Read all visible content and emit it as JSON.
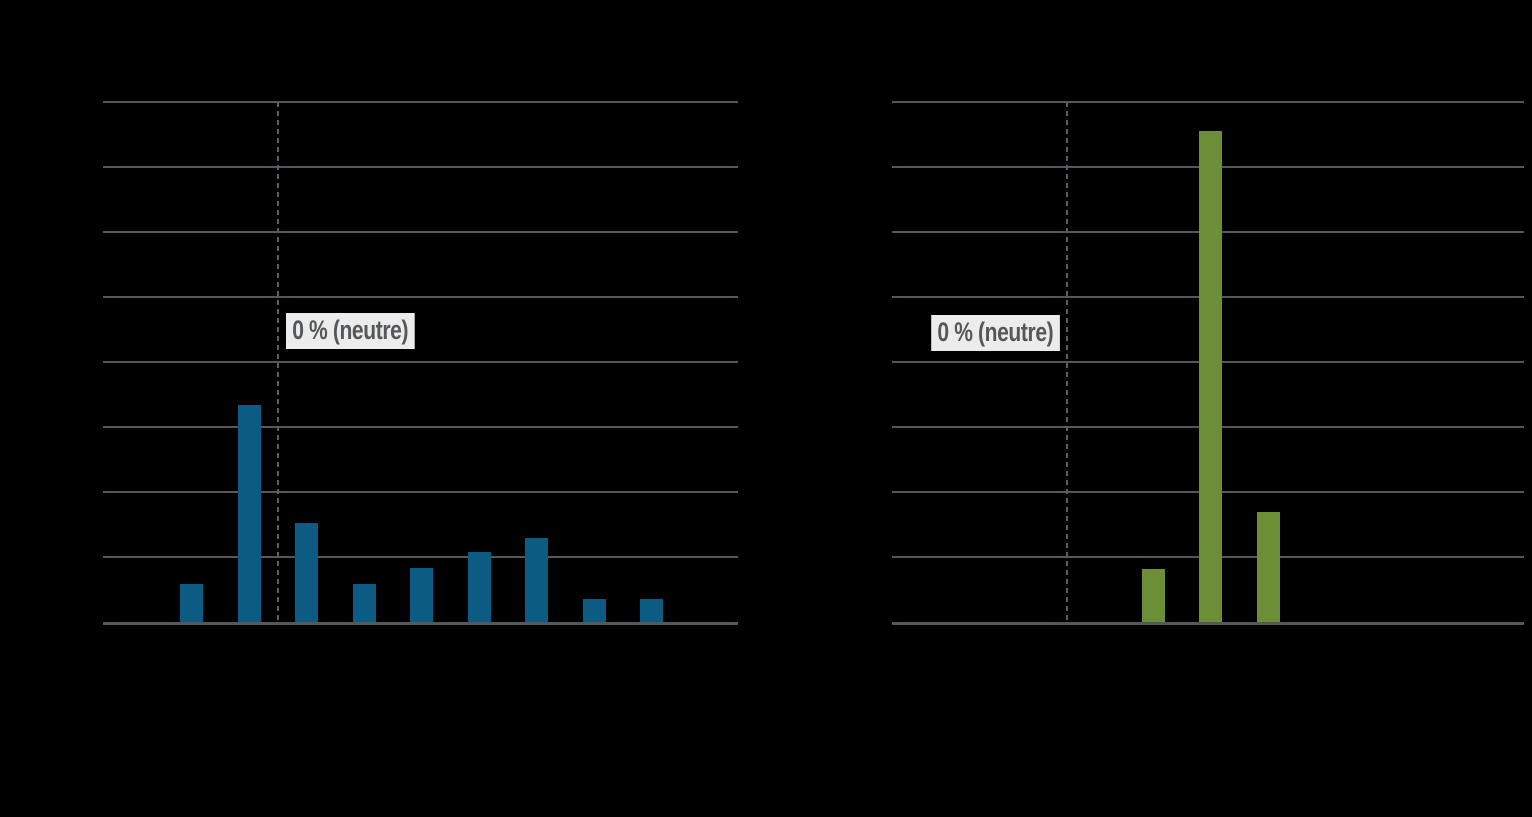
{
  "canvas": {
    "background": "#000000",
    "visible_text_note": "Only the two zero-reference badges are legible; all other chart text (title, axis tick labels) is rendered black on the black background and is not visible."
  },
  "zero_labels": {
    "left": "0 % (neutre)",
    "right": "0 % (neutre)"
  },
  "colors": {
    "background": "#000000",
    "gridline": "#53585b",
    "axis": "#53585b",
    "dashed_zero_line": "#5a5f62",
    "left_bar": "#0b5b82",
    "right_bar": "#6c8e36",
    "label_background": "#ececec",
    "label_text": "#54585a"
  },
  "chart_data": [
    {
      "type": "bar",
      "panel": "left",
      "bar_color": "#0b5b82",
      "category_count": 9,
      "categories_visible": false,
      "values": [
        5.8,
        33.4,
        15.3,
        5.8,
        8.3,
        10.7,
        13.0,
        3.5,
        3.5
      ],
      "values_unit": "percent, estimated from gridlines (10 % per gridline interval)",
      "ylim": [
        0,
        80
      ],
      "gridline_step": 10,
      "grid": "horizontal",
      "legend": "none",
      "zero_line": {
        "label": "0 % (neutre)",
        "between_categories": [
          2,
          3
        ],
        "label_side": "right-of-line"
      }
    },
    {
      "type": "bar",
      "panel": "right",
      "bar_color": "#6c8e36",
      "category_count": 9,
      "categories_visible": false,
      "values": [
        0,
        0,
        0,
        8.2,
        75.6,
        16.9,
        0,
        0,
        0
      ],
      "values_unit": "percent, estimated from gridlines (10 % per gridline interval)",
      "ylim": [
        0,
        80
      ],
      "gridline_step": 10,
      "grid": "horizontal",
      "legend": "none",
      "zero_line": {
        "label": "0 % (neutre)",
        "between_categories": [
          2,
          3
        ],
        "label_side": "left-of-line"
      }
    }
  ]
}
